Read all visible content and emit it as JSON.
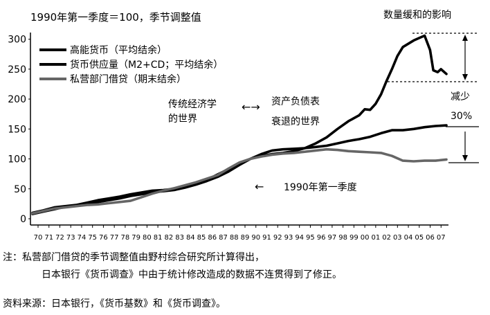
{
  "chart_data": {
    "type": "line",
    "title": "1990年第一季度＝100，季节调整值",
    "ylim": [
      0,
      310
    ],
    "yticks": [
      0,
      50,
      100,
      150,
      200,
      250,
      300
    ],
    "xlim": [
      1970,
      2008
    ],
    "xtick_labels": [
      "70",
      "71",
      "72",
      "73",
      "74",
      "75",
      "76",
      "77",
      "78",
      "79",
      "80",
      "81",
      "82",
      "83",
      "84",
      "85",
      "86",
      "87",
      "88",
      "89",
      "90",
      "91",
      "92",
      "93",
      "94",
      "95",
      "96",
      "97",
      "98",
      "99",
      "00",
      "01",
      "02",
      "03",
      "04",
      "05",
      "06",
      "07"
    ],
    "legend_position": "top-left",
    "grid": false,
    "series": [
      {
        "name": "高能货币（平均结余）",
        "color": "#000000",
        "points": [
          [
            1970,
            8
          ],
          [
            1971,
            12
          ],
          [
            1972,
            16
          ],
          [
            1973,
            20
          ],
          [
            1974,
            22
          ],
          [
            1975,
            25
          ],
          [
            1976,
            28
          ],
          [
            1977,
            31
          ],
          [
            1978,
            34
          ],
          [
            1979,
            38
          ],
          [
            1980,
            41
          ],
          [
            1981,
            44
          ],
          [
            1982,
            46
          ],
          [
            1983,
            48
          ],
          [
            1984,
            52
          ],
          [
            1985,
            57
          ],
          [
            1986,
            63
          ],
          [
            1987,
            70
          ],
          [
            1988,
            79
          ],
          [
            1989,
            90
          ],
          [
            1990,
            100
          ],
          [
            1991,
            105
          ],
          [
            1992,
            108
          ],
          [
            1993,
            110
          ],
          [
            1994,
            113
          ],
          [
            1995,
            118
          ],
          [
            1996,
            126
          ],
          [
            1997,
            136
          ],
          [
            1998,
            150
          ],
          [
            1999,
            163
          ],
          [
            2000,
            173
          ],
          [
            2000.5,
            183
          ],
          [
            2001,
            182
          ],
          [
            2001.5,
            192
          ],
          [
            2002,
            208
          ],
          [
            2002.5,
            230
          ],
          [
            2003,
            250
          ],
          [
            2003.5,
            272
          ],
          [
            2004,
            287
          ],
          [
            2005,
            298
          ],
          [
            2005.5,
            302
          ],
          [
            2006,
            306
          ],
          [
            2006.5,
            282
          ],
          [
            2006.8,
            248
          ],
          [
            2007.2,
            245
          ],
          [
            2007.5,
            250
          ],
          [
            2008,
            242
          ]
        ]
      },
      {
        "name": "货币供应量（M2+CD；平均结余）",
        "color": "#000000",
        "points": [
          [
            1970,
            10
          ],
          [
            1971,
            14
          ],
          [
            1972,
            19
          ],
          [
            1973,
            21
          ],
          [
            1974,
            23
          ],
          [
            1975,
            27
          ],
          [
            1976,
            31
          ],
          [
            1977,
            34
          ],
          [
            1978,
            37
          ],
          [
            1979,
            41
          ],
          [
            1980,
            44
          ],
          [
            1981,
            47
          ],
          [
            1982,
            48
          ],
          [
            1983,
            50
          ],
          [
            1984,
            53
          ],
          [
            1985,
            58
          ],
          [
            1986,
            65
          ],
          [
            1987,
            74
          ],
          [
            1988,
            83
          ],
          [
            1989,
            92
          ],
          [
            1990,
            100
          ],
          [
            1991,
            108
          ],
          [
            1992,
            114
          ],
          [
            1993,
            116
          ],
          [
            1994,
            117
          ],
          [
            1995,
            118
          ],
          [
            1996,
            120
          ],
          [
            1997,
            122
          ],
          [
            1998,
            126
          ],
          [
            1999,
            130
          ],
          [
            2000,
            133
          ],
          [
            2001,
            137
          ],
          [
            2002,
            143
          ],
          [
            2003,
            148
          ],
          [
            2004,
            148
          ],
          [
            2005,
            150
          ],
          [
            2006,
            153
          ],
          [
            2007,
            155
          ],
          [
            2008,
            156
          ]
        ]
      },
      {
        "name": "私营部门借贷（期末结余）",
        "color": "#666666",
        "points": [
          [
            1970,
            9
          ],
          [
            1971,
            13
          ],
          [
            1972,
            17
          ],
          [
            1973,
            19
          ],
          [
            1974,
            21
          ],
          [
            1975,
            23
          ],
          [
            1976,
            24
          ],
          [
            1977,
            26
          ],
          [
            1978,
            28
          ],
          [
            1979,
            30
          ],
          [
            1980,
            36
          ],
          [
            1981,
            42
          ],
          [
            1982,
            47
          ],
          [
            1983,
            51
          ],
          [
            1984,
            56
          ],
          [
            1985,
            61
          ],
          [
            1986,
            67
          ],
          [
            1987,
            73
          ],
          [
            1988,
            84
          ],
          [
            1989,
            94
          ],
          [
            1990,
            100
          ],
          [
            1991,
            104
          ],
          [
            1992,
            107
          ],
          [
            1993,
            109
          ],
          [
            1994,
            110
          ],
          [
            1995,
            112
          ],
          [
            1996,
            114
          ],
          [
            1997,
            116
          ],
          [
            1998,
            115
          ],
          [
            1999,
            113
          ],
          [
            2000,
            112
          ],
          [
            2001,
            111
          ],
          [
            2002,
            110
          ],
          [
            2003,
            105
          ],
          [
            2004,
            97
          ],
          [
            2005,
            96
          ],
          [
            2006,
            97
          ],
          [
            2007,
            97
          ],
          [
            2008,
            99
          ]
        ]
      }
    ],
    "annotations": {
      "traditional_world_line1": "传统经济学",
      "traditional_world_line2": "的世界",
      "double_arrow": "←→",
      "recession_world_line1": "资产负债表",
      "recession_world_line2": "衰退的世界",
      "base_period_arrow": "←",
      "base_period": "1990年第一季度",
      "easing_effect": "数量缓和的影响",
      "reduce_line1": "减少",
      "reduce_line2": "30%"
    }
  },
  "notes": {
    "note_line1": "注：私营部门借贷的季节调整值由野村综合研究所计算得出，",
    "note_line2": "日本银行《货币调查》中由于统计修改造成的数据不连贯得到了修正。",
    "source": "资料来源：日本银行，《货币基数》和《货币调查》。"
  }
}
